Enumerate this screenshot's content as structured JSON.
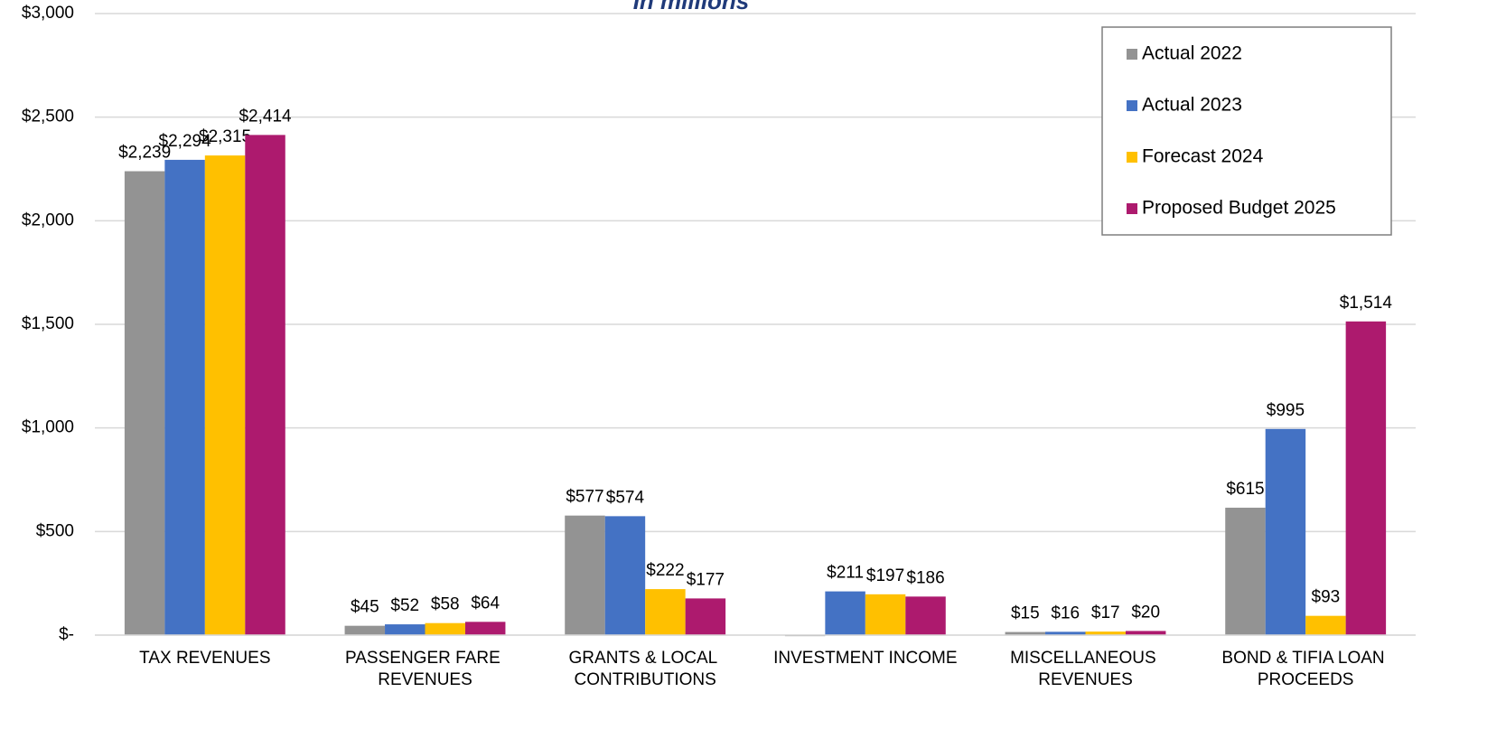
{
  "chart_data": {
    "type": "bar",
    "subtitle": "In millions",
    "categories": [
      "TAX REVENUES",
      "PASSENGER FARE REVENUES",
      "GRANTS & LOCAL CONTRIBUTIONS",
      "INVESTMENT INCOME",
      "MISCELLANEOUS REVENUES",
      "BOND & TIFIA LOAN PROCEEDS"
    ],
    "series": [
      {
        "name": "Actual 2022",
        "color": "#939393",
        "values": [
          2239,
          45,
          577,
          -5,
          15,
          615
        ],
        "value_labels": [
          "$2,239",
          "$45",
          "$577",
          null,
          "$15",
          "$615"
        ]
      },
      {
        "name": "Actual 2023",
        "color": "#4472c4",
        "values": [
          2294,
          52,
          574,
          211,
          16,
          995
        ],
        "value_labels": [
          "$2,294",
          "$52",
          "$574",
          "$211",
          "$16",
          "$995"
        ]
      },
      {
        "name": "Forecast 2024",
        "color": "#ffc000",
        "values": [
          2315,
          58,
          222,
          197,
          17,
          93
        ],
        "value_labels": [
          "$2,315",
          "$58",
          "$222",
          "$197",
          "$17",
          "$93"
        ]
      },
      {
        "name": "Proposed Budget 2025",
        "color": "#ad1a6e",
        "values": [
          2414,
          64,
          177,
          186,
          20,
          1514
        ],
        "value_labels": [
          "$2,414",
          "$64",
          "$177",
          "$186",
          "$20",
          "$1,514"
        ]
      }
    ],
    "ylim": [
      0,
      3000
    ],
    "yticks": [
      {
        "value": 0,
        "label": "$-"
      },
      {
        "value": 500,
        "label": "$500"
      },
      {
        "value": 1000,
        "label": "$1,000"
      },
      {
        "value": 1500,
        "label": "$1,500"
      },
      {
        "value": 2000,
        "label": "$2,000"
      },
      {
        "value": 2500,
        "label": "$2,500"
      },
      {
        "value": 3000,
        "label": "$3,000"
      }
    ],
    "grid": true,
    "legend": "upper right"
  }
}
